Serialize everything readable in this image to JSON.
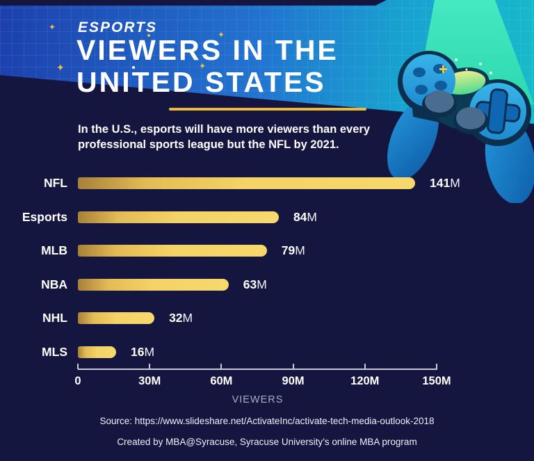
{
  "header": {
    "kicker": "ESPORTS",
    "title_line1": "VIEWERS IN THE",
    "title_line2": "UNITED STATES",
    "subtitle_line1": "In the U.S., esports will have more viewers than every",
    "subtitle_line2": "professional sports league but the NFL by 2021.",
    "accent_color": "#ecba3d"
  },
  "chart_data": {
    "type": "bar",
    "orientation": "horizontal",
    "title": "Esports viewers in the United States",
    "categories": [
      "NFL",
      "Esports",
      "MLB",
      "NBA",
      "NHL",
      "MLS"
    ],
    "values": [
      141,
      84,
      79,
      63,
      32,
      16
    ],
    "value_labels": [
      "141M",
      "84M",
      "79M",
      "63M",
      "32M",
      "16M"
    ],
    "xlim": [
      0,
      150
    ],
    "x_ticks": [
      0,
      30,
      60,
      90,
      120,
      150
    ],
    "x_tick_labels": [
      "0",
      "30M",
      "60M",
      "90M",
      "120M",
      "150M"
    ],
    "xlabel": "VIEWERS",
    "grid": false,
    "bar_gradient": [
      "#a8803a",
      "#f6d86d"
    ],
    "background": "#151640"
  },
  "footer": {
    "source": "Source: https://www.slideshare.net/ActivateInc/activate-tech-media-outlook-2018",
    "credit": "Created by MBA@Syracuse, Syracuse University’s online MBA program"
  },
  "decor": {
    "icons": [
      "sparkle-icon",
      "beam-light",
      "game-controller-icon",
      "dpad-icon",
      "analog-stick-icon"
    ]
  }
}
